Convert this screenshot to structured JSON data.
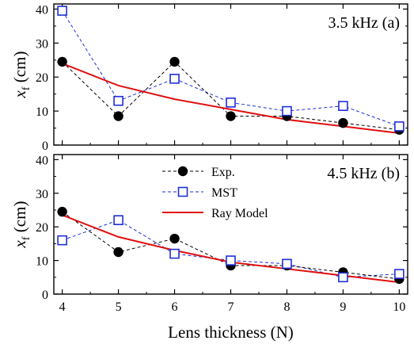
{
  "chart_data": [
    {
      "type": "line",
      "panel_label": "3.5 kHz (a)",
      "ylabel": "x",
      "ylabel_sub": "f",
      "ylabel_unit": " (cm)",
      "xlabel": "",
      "xlim": [
        3.85,
        10.15
      ],
      "ylim": [
        0,
        41.5
      ],
      "x_ticks": [
        4,
        5,
        6,
        7,
        8,
        9,
        10
      ],
      "y_ticks": [
        0,
        10,
        20,
        30,
        40
      ],
      "x_tick_labels_shown": false,
      "legend": false,
      "colors": {
        "exp": "#000000",
        "mst": "#1f2fd6",
        "ray": "#e01010"
      },
      "series": [
        {
          "key": "exp",
          "x": [
            4,
            5,
            6,
            7,
            8,
            9,
            10
          ],
          "values": [
            24.5,
            8.5,
            24.5,
            8.5,
            8.5,
            6.5,
            4.5
          ]
        },
        {
          "key": "mst",
          "x": [
            4,
            5,
            6,
            7,
            8,
            9,
            10
          ],
          "values": [
            39.5,
            13.0,
            19.5,
            12.5,
            10.0,
            11.5,
            5.5
          ]
        },
        {
          "key": "ray",
          "x": [
            4,
            5,
            6,
            7,
            8,
            9,
            10
          ],
          "values": [
            24.0,
            17.5,
            13.5,
            10.5,
            7.5,
            5.5,
            3.5
          ]
        }
      ]
    },
    {
      "type": "line",
      "panel_label": "4.5 kHz (b)",
      "ylabel": "x",
      "ylabel_sub": "f",
      "ylabel_unit": " (cm)",
      "xlabel": "Lens thickness (N)",
      "xlim": [
        3.85,
        10.15
      ],
      "ylim": [
        0,
        41.5
      ],
      "x_ticks": [
        4,
        5,
        6,
        7,
        8,
        9,
        10
      ],
      "y_ticks": [
        0,
        10,
        20,
        30,
        40
      ],
      "x_tick_labels_shown": true,
      "legend": true,
      "legend_position": "top-center",
      "colors": {
        "exp": "#000000",
        "mst": "#1f2fd6",
        "ray": "#e01010"
      },
      "series": [
        {
          "key": "exp",
          "name": "Exp.",
          "x": [
            4,
            5,
            6,
            7,
            8,
            9,
            10
          ],
          "values": [
            24.5,
            12.5,
            16.5,
            8.5,
            8.5,
            6.5,
            4.5
          ]
        },
        {
          "key": "mst",
          "name": "MST",
          "x": [
            4,
            5,
            6,
            7,
            8,
            9,
            10
          ],
          "values": [
            16.0,
            22.0,
            12.0,
            10.0,
            9.0,
            5.0,
            6.0
          ]
        },
        {
          "key": "ray",
          "name": "Ray Model",
          "x": [
            4,
            5,
            6,
            7,
            8,
            9,
            10
          ],
          "values": [
            23.5,
            17.0,
            13.0,
            9.5,
            7.5,
            5.5,
            3.5
          ]
        }
      ]
    }
  ]
}
